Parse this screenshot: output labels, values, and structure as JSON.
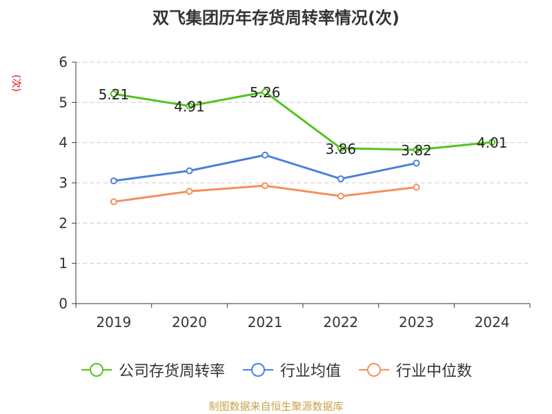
{
  "chart_data": {
    "type": "line",
    "title": "双飞集团历年存货周转率情况(次)",
    "ylabel": "(次)",
    "xlabel": "",
    "categories": [
      "2019",
      "2020",
      "2021",
      "2022",
      "2023",
      "2024"
    ],
    "ylim": [
      0,
      6
    ],
    "yticks": [
      0,
      1,
      2,
      3,
      4,
      5,
      6
    ],
    "grid": true,
    "legend_position": "bottom",
    "series": [
      {
        "name": "公司存货周转率",
        "color": "#52c41a",
        "values": [
          5.21,
          4.91,
          5.26,
          3.86,
          3.82,
          4.01
        ],
        "labels": [
          "5.21",
          "4.91",
          "5.26",
          "3.86",
          "3.82",
          "4.01"
        ]
      },
      {
        "name": "行业均值",
        "color": "#4a7fdc",
        "values": [
          3.05,
          3.3,
          3.69,
          3.1,
          3.49,
          null
        ]
      },
      {
        "name": "行业中位数",
        "color": "#f4905c",
        "values": [
          2.53,
          2.79,
          2.93,
          2.67,
          2.89,
          null
        ]
      }
    ]
  },
  "source": "制图数据来自恒生聚源数据库"
}
